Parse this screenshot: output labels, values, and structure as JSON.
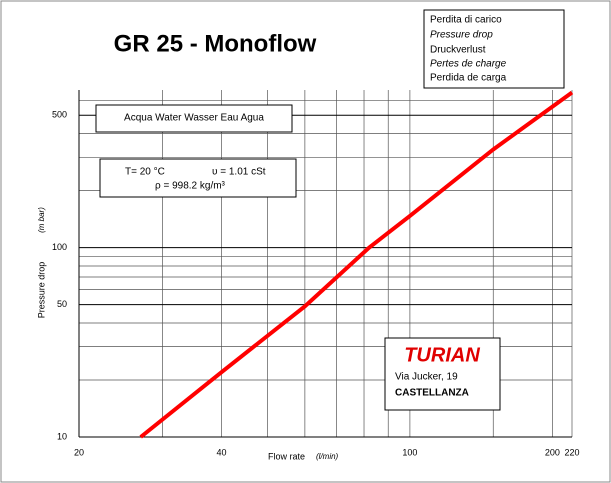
{
  "chart_data": {
    "type": "line",
    "title": "GR 25 - Monoflow",
    "legend_texts": [
      "Perdita di carico",
      "Pressure drop",
      "Druckverlust",
      "Pertes de charge",
      "Perdida de carga"
    ],
    "fluid": "Acqua  Water  Wasser Eau  Agua",
    "conditions": [
      "T= 20 °C",
      "υ = 1.01  cSt",
      "ρ = 998.2  kg/m³"
    ],
    "brand": "TURIAN",
    "address": [
      "Via Jucker, 19",
      "CASTELLANZA"
    ],
    "y_label": "Pressure drop",
    "y_unit": "(m bar)",
    "x_label": "Flow rate",
    "x_unit": "(l/min)",
    "log_x": true,
    "log_y": true,
    "grid": true,
    "xlim": [
      20,
      220
    ],
    "ylim": [
      10,
      680
    ],
    "xticks": [
      20,
      40,
      100,
      200,
      220
    ],
    "yticks": [
      10,
      50,
      100,
      500
    ],
    "xminor": [
      30,
      50,
      60,
      70,
      80,
      90,
      150
    ],
    "yminor": [
      20,
      30,
      40,
      60,
      70,
      80,
      90,
      200,
      300,
      400,
      600
    ],
    "series": [
      {
        "name": "GR 25",
        "color": "#ff0000",
        "x": [
          27,
          40,
          60,
          82,
          100,
          150,
          220
        ],
        "values": [
          10,
          22,
          49,
          100,
          147,
          330,
          660
        ]
      }
    ]
  }
}
